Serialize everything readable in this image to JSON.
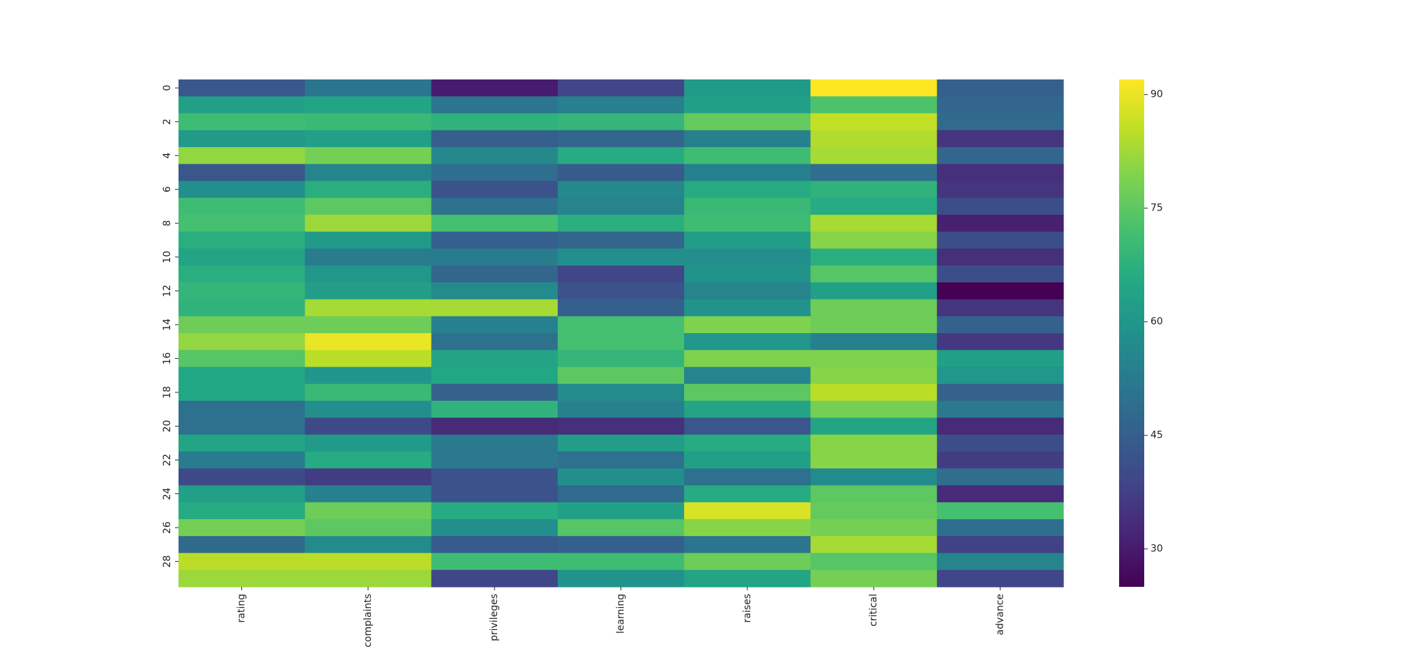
{
  "chart_data": {
    "type": "heatmap",
    "columns": [
      "rating",
      "complaints",
      "privileges",
      "learning",
      "raises",
      "critical",
      "advance"
    ],
    "rows": [
      "0",
      null,
      "2",
      null,
      "4",
      null,
      "6",
      null,
      "8",
      null,
      "10",
      null,
      "12",
      null,
      "14",
      null,
      "16",
      null,
      "18",
      null,
      "20",
      null,
      "22",
      null,
      "24",
      null,
      "26",
      null,
      "28",
      null
    ],
    "values": [
      [
        43,
        51,
        30,
        39,
        61,
        92,
        45
      ],
      [
        63,
        64,
        51,
        54,
        63,
        73,
        47
      ],
      [
        71,
        70,
        68,
        69,
        76,
        86,
        48
      ],
      [
        61,
        63,
        45,
        47,
        54,
        84,
        35
      ],
      [
        81,
        78,
        56,
        66,
        71,
        83,
        47
      ],
      [
        43,
        55,
        49,
        44,
        54,
        49,
        34
      ],
      [
        58,
        67,
        42,
        56,
        66,
        68,
        35
      ],
      [
        71,
        75,
        50,
        55,
        70,
        66,
        41
      ],
      [
        72,
        82,
        72,
        67,
        71,
        83,
        31
      ],
      [
        67,
        61,
        45,
        47,
        62,
        80,
        41
      ],
      [
        64,
        53,
        53,
        58,
        58,
        67,
        34
      ],
      [
        67,
        60,
        47,
        39,
        59,
        74,
        41
      ],
      [
        69,
        62,
        57,
        42,
        55,
        63,
        25
      ],
      [
        68,
        83,
        83,
        45,
        59,
        77,
        35
      ],
      [
        77,
        77,
        54,
        72,
        79,
        77,
        46
      ],
      [
        81,
        90,
        50,
        72,
        60,
        54,
        36
      ],
      [
        74,
        85,
        64,
        69,
        79,
        79,
        63
      ],
      [
        65,
        60,
        65,
        75,
        55,
        80,
        60
      ],
      [
        65,
        70,
        46,
        57,
        75,
        85,
        46
      ],
      [
        50,
        58,
        68,
        54,
        64,
        78,
        52
      ],
      [
        50,
        40,
        33,
        34,
        43,
        64,
        33
      ],
      [
        64,
        61,
        52,
        62,
        66,
        80,
        41
      ],
      [
        53,
        66,
        52,
        50,
        63,
        80,
        37
      ],
      [
        40,
        37,
        42,
        58,
        50,
        57,
        49
      ],
      [
        63,
        54,
        42,
        48,
        66,
        75,
        33
      ],
      [
        66,
        77,
        66,
        63,
        88,
        76,
        72
      ],
      [
        78,
        75,
        58,
        74,
        80,
        78,
        49
      ],
      [
        48,
        57,
        44,
        45,
        51,
        83,
        38
      ],
      [
        85,
        85,
        71,
        71,
        77,
        74,
        55
      ],
      [
        82,
        82,
        39,
        59,
        64,
        78,
        39
      ]
    ],
    "colormap": "viridis",
    "zlim": [
      25,
      92
    ],
    "colorbar_ticks": [
      30,
      45,
      60,
      75,
      90
    ]
  }
}
